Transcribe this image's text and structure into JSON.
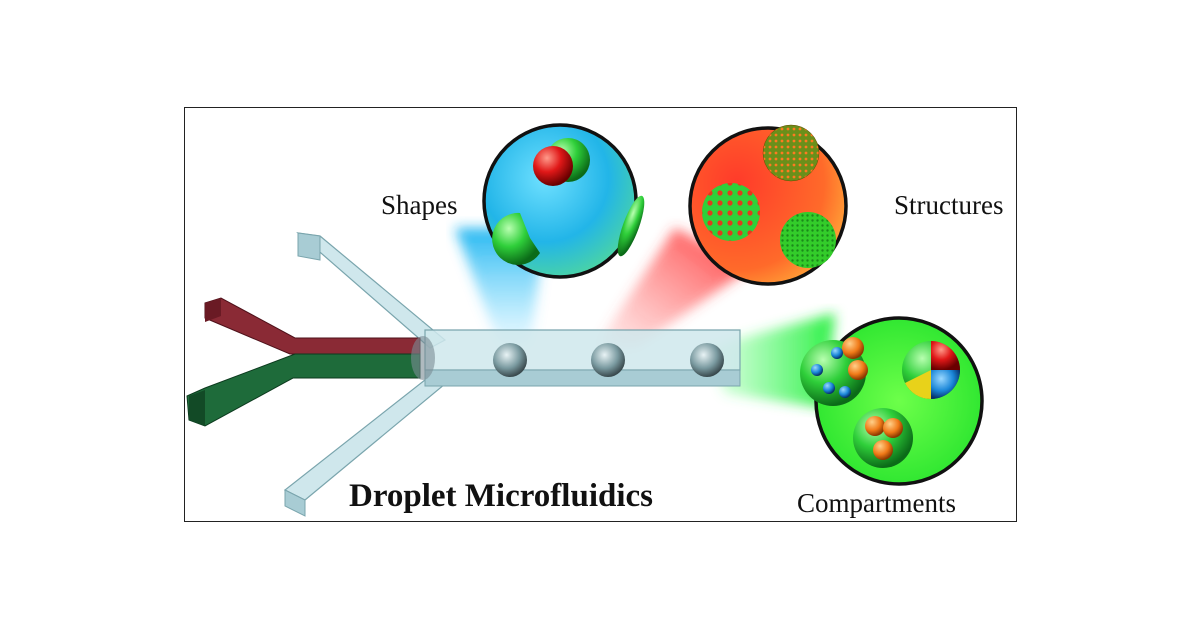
{
  "title": "Droplet Microfluidics",
  "categories": {
    "shapes": "Shapes",
    "structures": "Structures",
    "compartments": "Compartments"
  },
  "colors": {
    "channel": "#c9e4ea",
    "inlet_red": "#8a2a35",
    "inlet_green": "#1e6b3a",
    "shapes_bg": "#29b7e6",
    "structures_bg": "#ff5a2a",
    "compartments_bg": "#2ee82a"
  },
  "icons": [
    "microfluidic-chip",
    "droplet",
    "janus-particle",
    "sphere-cap",
    "ellipsoid",
    "patterned-sphere"
  ]
}
